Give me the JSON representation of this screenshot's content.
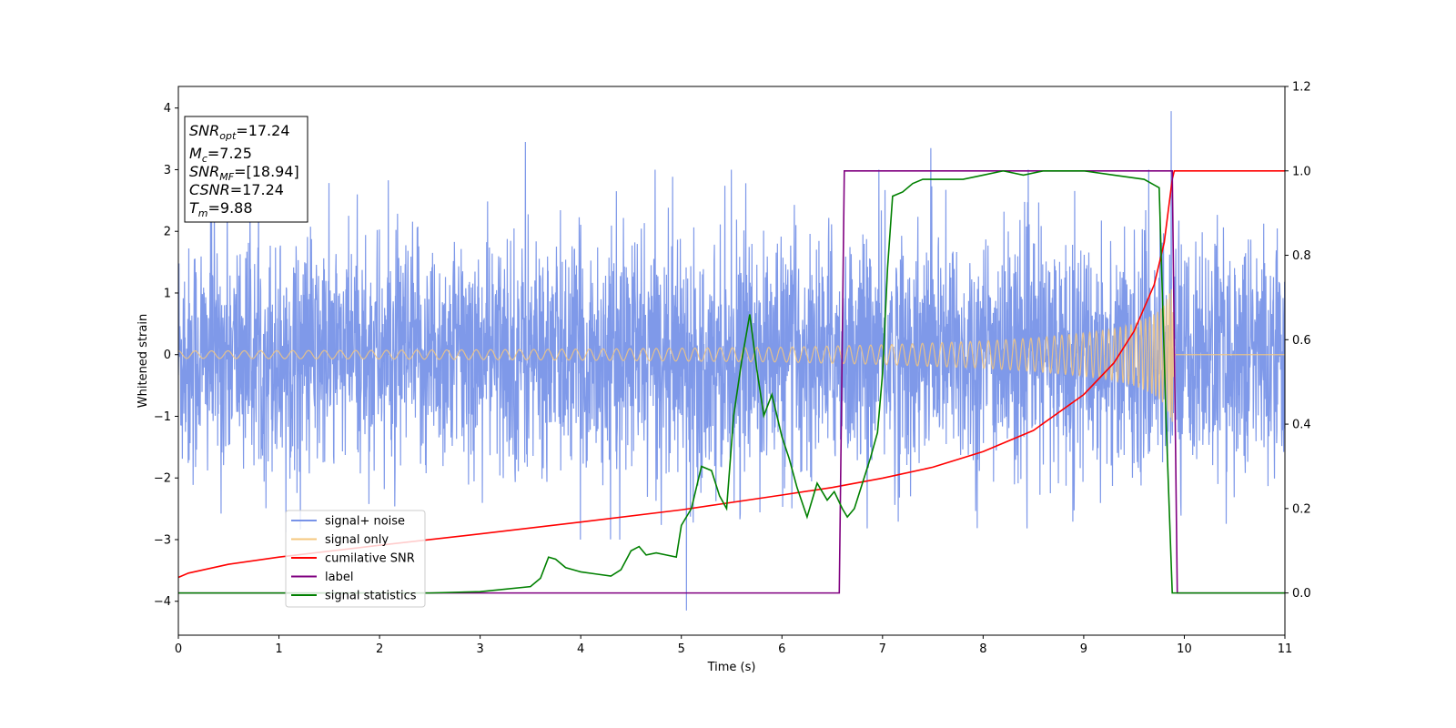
{
  "chart_data": {
    "type": "line",
    "title": "",
    "xlabel": "Time (s)",
    "ylabel": "Whitened strain",
    "y2label": "",
    "xlim": [
      0,
      11
    ],
    "ylim": [
      -4.55,
      4.35
    ],
    "y2lim": [
      -0.1,
      1.2
    ],
    "x_ticks": [
      "0",
      "1",
      "2",
      "3",
      "4",
      "5",
      "6",
      "7",
      "8",
      "9",
      "10",
      "11"
    ],
    "y_ticks": [
      "−4",
      "−3",
      "−2",
      "−1",
      "0",
      "1",
      "2",
      "3",
      "4"
    ],
    "y2_ticks": [
      "0.0",
      "0.2",
      "0.4",
      "0.6",
      "0.8",
      "1.0",
      "1.2"
    ],
    "grid": false,
    "legend_position": "lower-left",
    "legend": [
      {
        "label": "signal+ noise",
        "color": "#7893e8"
      },
      {
        "label": "signal only",
        "color": "#f5c77e"
      },
      {
        "label": "cumilative SNR",
        "color": "#ff0000"
      },
      {
        "label": "label",
        "color": "#800080"
      },
      {
        "label": "signal statistics",
        "color": "#008000"
      }
    ],
    "info_box": {
      "snr_opt": {
        "sym": "SNR",
        "sub": "opt",
        "value": "=17.24"
      },
      "mc": {
        "sym": "M",
        "sub": "c",
        "value": "=7.25"
      },
      "snr_mf": {
        "sym": "SNR",
        "sub": "MF",
        "value": "=[18.94]"
      },
      "csnr": {
        "sym": "CSNR",
        "value": "=17.24"
      },
      "tm": {
        "sym": "T",
        "sub": "m",
        "value": "=9.88"
      }
    },
    "series": [
      {
        "name": "signal+ noise",
        "axis": "left",
        "color": "#7893e8",
        "description": "whitened noisy strain, roughly within ±2.5 with spikes to ±3.5",
        "x_range": [
          0,
          11
        ],
        "typical_amplitude": 2.3,
        "peak_values": [
          {
            "x": 3.45,
            "y": 3.45
          },
          {
            "x": 5.05,
            "y": -4.15
          },
          {
            "x": 9.87,
            "y": 3.95
          },
          {
            "x": 7.48,
            "y": 3.35
          },
          {
            "x": 0.33,
            "y": 2.9
          }
        ]
      },
      {
        "name": "signal only",
        "axis": "left",
        "color": "#f5c77e",
        "description": "chirp signal with growing amplitude up to merger at t≈9.88",
        "envelope": {
          "x": [
            0,
            2,
            4,
            6,
            7,
            8,
            8.5,
            9,
            9.3,
            9.5,
            9.7,
            9.8,
            9.88,
            9.9,
            11
          ],
          "amplitude": [
            0.06,
            0.07,
            0.09,
            0.12,
            0.16,
            0.22,
            0.27,
            0.35,
            0.42,
            0.5,
            0.65,
            0.8,
            1.1,
            0,
            0
          ]
        }
      },
      {
        "name": "cumilative SNR",
        "axis": "right",
        "color": "#ff0000",
        "x": [
          0,
          0.1,
          0.5,
          1,
          2,
          3,
          4,
          5,
          6,
          6.5,
          7,
          7.5,
          8,
          8.5,
          9,
          9.3,
          9.5,
          9.7,
          9.8,
          9.88,
          9.9,
          11
        ],
        "values": [
          0.037,
          0.047,
          0.068,
          0.085,
          0.113,
          0.14,
          0.168,
          0.197,
          0.232,
          0.25,
          0.272,
          0.298,
          0.335,
          0.385,
          0.47,
          0.545,
          0.62,
          0.73,
          0.83,
          0.98,
          1.0,
          1.0
        ]
      },
      {
        "name": "label",
        "axis": "right",
        "color": "#800080",
        "x": [
          0,
          6.57,
          6.62,
          9.88,
          9.93,
          11
        ],
        "values": [
          0.0,
          0.0,
          1.0,
          1.0,
          0.0,
          0.0
        ]
      },
      {
        "name": "signal statistics",
        "axis": "right",
        "color": "#008000",
        "x": [
          0,
          2.5,
          3.0,
          3.5,
          3.6,
          3.68,
          3.75,
          3.85,
          4.0,
          4.15,
          4.3,
          4.4,
          4.5,
          4.58,
          4.65,
          4.75,
          4.85,
          4.95,
          5.0,
          5.1,
          5.2,
          5.3,
          5.38,
          5.45,
          5.52,
          5.6,
          5.68,
          5.75,
          5.82,
          5.9,
          6.0,
          6.07,
          6.15,
          6.25,
          6.35,
          6.45,
          6.52,
          6.6,
          6.65,
          6.72,
          6.8,
          6.88,
          6.95,
          7.0,
          7.05,
          7.1,
          7.2,
          7.3,
          7.4,
          7.6,
          7.8,
          8.0,
          8.2,
          8.4,
          8.6,
          8.8,
          9.0,
          9.3,
          9.6,
          9.75,
          9.82,
          9.88,
          9.93,
          10.0,
          11
        ],
        "values": [
          0.0,
          0.0,
          0.003,
          0.015,
          0.035,
          0.085,
          0.08,
          0.06,
          0.05,
          0.045,
          0.04,
          0.055,
          0.1,
          0.11,
          0.09,
          0.095,
          0.09,
          0.085,
          0.16,
          0.2,
          0.3,
          0.29,
          0.23,
          0.2,
          0.42,
          0.55,
          0.66,
          0.53,
          0.42,
          0.47,
          0.37,
          0.32,
          0.25,
          0.18,
          0.26,
          0.22,
          0.24,
          0.2,
          0.18,
          0.2,
          0.26,
          0.32,
          0.38,
          0.52,
          0.77,
          0.94,
          0.95,
          0.97,
          0.98,
          0.98,
          0.98,
          0.99,
          1.0,
          0.99,
          1.0,
          1.0,
          1.0,
          0.99,
          0.98,
          0.96,
          0.4,
          0.0,
          0.0,
          0.0,
          0.0
        ]
      }
    ]
  }
}
